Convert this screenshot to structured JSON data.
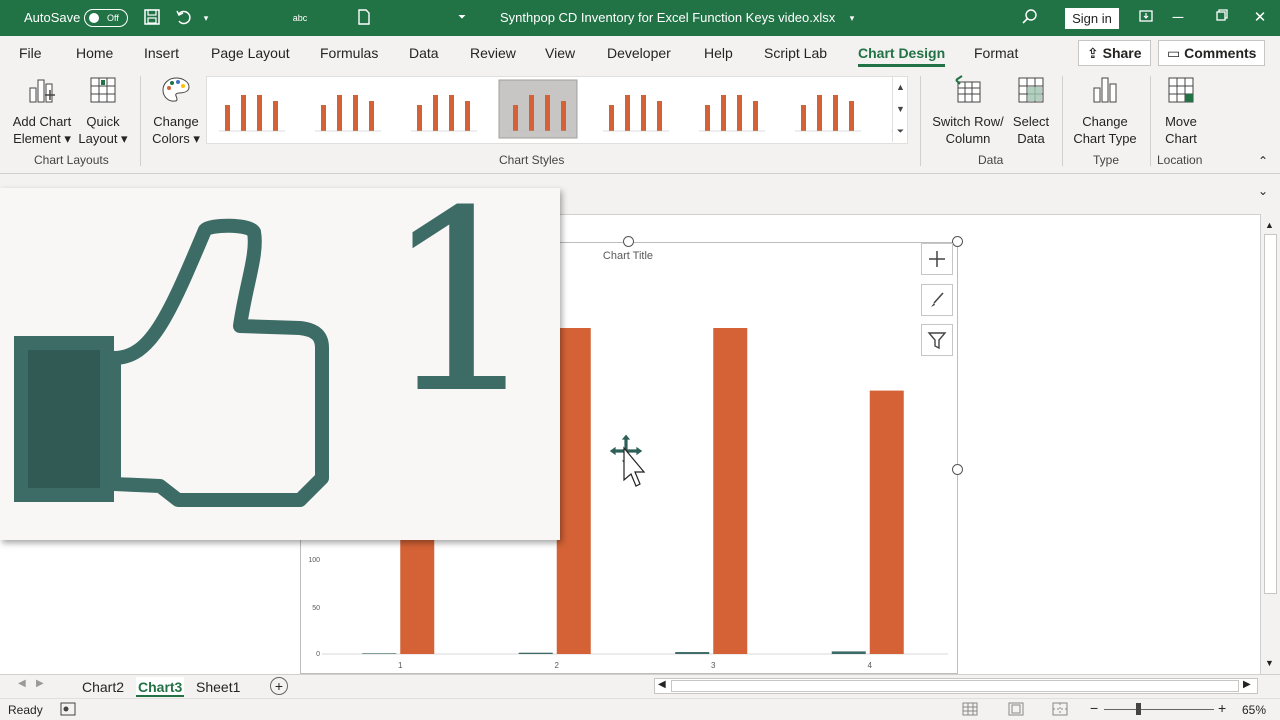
{
  "title_bar": {
    "autosave_label": "AutoSave",
    "autosave_state": "Off",
    "document_title": "Synthpop CD Inventory for Excel Function Keys video.xlsx",
    "sign_in_label": "Sign in"
  },
  "menu": {
    "items": [
      "File",
      "Home",
      "Insert",
      "Page Layout",
      "Formulas",
      "Data",
      "Review",
      "View",
      "Developer",
      "Help",
      "Script Lab",
      "Chart Design",
      "Format"
    ],
    "active": "Chart Design",
    "share_label": "Share",
    "comments_label": "Comments"
  },
  "ribbon": {
    "add_chart_element": "Add Chart\nElement",
    "quick_layout": "Quick\nLayout",
    "change_colors": "Change\nColors",
    "switch_row_column": "Switch Row/\nColumn",
    "select_data": "Select\nData",
    "change_chart_type": "Change\nChart Type",
    "move_chart": "Move\nChart",
    "groups": {
      "chart_layouts": "Chart Layouts",
      "chart_styles": "Chart Styles",
      "data": "Data",
      "type": "Type",
      "location": "Location"
    },
    "style_count": 8,
    "selected_style_index": 3,
    "accent_color": "#217346",
    "bar_color": "#d46236"
  },
  "chart": {
    "title": "Chart Title",
    "y_ticks": [
      "0",
      "50",
      "100"
    ],
    "x_ticks": [
      "1",
      "2",
      "3",
      "4"
    ]
  },
  "chart_data": {
    "type": "bar",
    "title": "Chart Title",
    "categories": [
      "1",
      "2",
      "3",
      "4"
    ],
    "series": [
      {
        "values": [
          1,
          2,
          3,
          4
        ],
        "color": "#3d6b65"
      },
      {
        "values": [
          188,
          500,
          500,
          404
        ],
        "color": "#d46236"
      }
    ],
    "ylim": [
      0,
      500
    ],
    "y_tick_labels_visible": [
      "0",
      "50",
      "100"
    ],
    "grid": false
  },
  "overlay": {
    "number": "1",
    "icon": "thumbs-up-icon",
    "color": "#3d6b65"
  },
  "sheets": {
    "tabs": [
      "Chart2",
      "Chart3",
      "Sheet1"
    ],
    "active": "Chart3"
  },
  "status": {
    "ready": "Ready",
    "zoom": "65%",
    "zoom_level": 0.65
  }
}
